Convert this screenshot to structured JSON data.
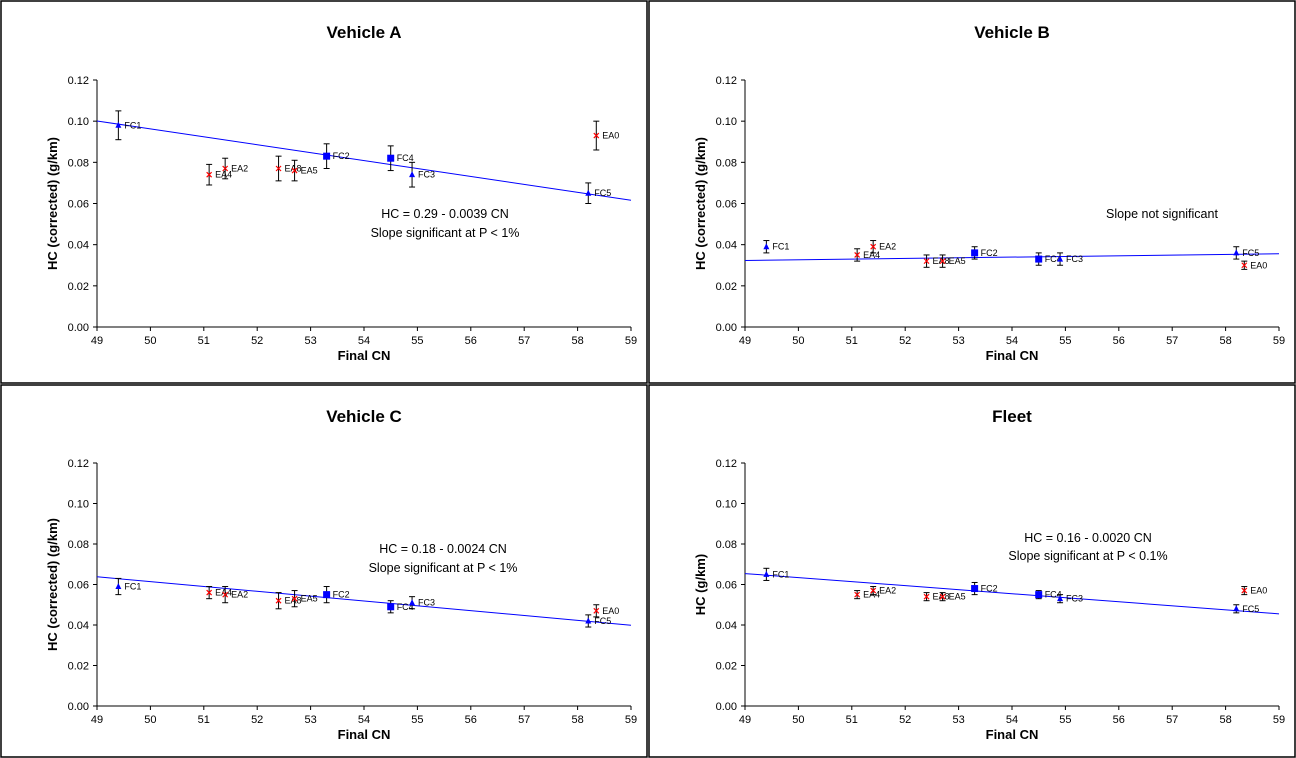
{
  "chart_data": [
    {
      "type": "scatter",
      "title": "Vehicle A",
      "xlabel": "Final CN",
      "ylabel": "HC (corrected) (g/km)",
      "xlim": [
        49,
        59
      ],
      "ylim": [
        0,
        0.12
      ],
      "x_ticks": [
        "49",
        "50",
        "51",
        "52",
        "53",
        "54",
        "55",
        "56",
        "57",
        "58",
        "59"
      ],
      "y_ticks": [
        "0.00",
        "0.02",
        "0.04",
        "0.06",
        "0.08",
        "0.10",
        "0.12"
      ],
      "annotations": [
        "HC = 0.29 - 0.0039 CN",
        "Slope significant at P < 1%"
      ],
      "fit": {
        "x": [
          49,
          59
        ],
        "y": [
          0.1001,
          0.0616
        ]
      },
      "points": [
        {
          "label": "FC1",
          "x": 49.4,
          "y": 0.098,
          "err": 0.007,
          "marker": "triangle"
        },
        {
          "label": "EA4",
          "x": 51.1,
          "y": 0.074,
          "err": 0.005,
          "marker": "x"
        },
        {
          "label": "EA2",
          "x": 51.4,
          "y": 0.077,
          "err": 0.005,
          "marker": "x"
        },
        {
          "label": "EA8",
          "x": 52.4,
          "y": 0.077,
          "err": 0.006,
          "marker": "x"
        },
        {
          "label": "EA5",
          "x": 52.7,
          "y": 0.076,
          "err": 0.005,
          "marker": "x"
        },
        {
          "label": "FC2",
          "x": 53.3,
          "y": 0.083,
          "err": 0.006,
          "marker": "square"
        },
        {
          "label": "FC4",
          "x": 54.5,
          "y": 0.082,
          "err": 0.006,
          "marker": "square"
        },
        {
          "label": "FC3",
          "x": 54.9,
          "y": 0.074,
          "err": 0.006,
          "marker": "triangle"
        },
        {
          "label": "FC5",
          "x": 58.2,
          "y": 0.065,
          "err": 0.005,
          "marker": "triangle"
        },
        {
          "label": "EA0",
          "x": 58.35,
          "y": 0.093,
          "err": 0.007,
          "marker": "x"
        }
      ]
    },
    {
      "type": "scatter",
      "title": "Vehicle B",
      "xlabel": "Final CN",
      "ylabel": "HC (corrected) (g/km)",
      "xlim": [
        49,
        59
      ],
      "ylim": [
        0,
        0.12
      ],
      "x_ticks": [
        "49",
        "50",
        "51",
        "52",
        "53",
        "54",
        "55",
        "56",
        "57",
        "58",
        "59"
      ],
      "y_ticks": [
        "0.00",
        "0.02",
        "0.04",
        "0.06",
        "0.08",
        "0.10",
        "0.12"
      ],
      "annotations": [
        "Slope not significant"
      ],
      "fit": {
        "x": [
          49,
          59
        ],
        "y": [
          0.0323,
          0.0356
        ]
      },
      "points": [
        {
          "label": "FC1",
          "x": 49.4,
          "y": 0.039,
          "err": 0.003,
          "marker": "triangle"
        },
        {
          "label": "EA4",
          "x": 51.1,
          "y": 0.035,
          "err": 0.003,
          "marker": "x"
        },
        {
          "label": "EA2",
          "x": 51.4,
          "y": 0.039,
          "err": 0.003,
          "marker": "x"
        },
        {
          "label": "EA8",
          "x": 52.4,
          "y": 0.032,
          "err": 0.003,
          "marker": "x"
        },
        {
          "label": "EA5",
          "x": 52.7,
          "y": 0.032,
          "err": 0.003,
          "marker": "x"
        },
        {
          "label": "FC2",
          "x": 53.3,
          "y": 0.036,
          "err": 0.003,
          "marker": "square"
        },
        {
          "label": "FC4",
          "x": 54.5,
          "y": 0.033,
          "err": 0.003,
          "marker": "square"
        },
        {
          "label": "FC3",
          "x": 54.9,
          "y": 0.033,
          "err": 0.003,
          "marker": "triangle"
        },
        {
          "label": "FC5",
          "x": 58.2,
          "y": 0.036,
          "err": 0.003,
          "marker": "triangle"
        },
        {
          "label": "EA0",
          "x": 58.35,
          "y": 0.03,
          "err": 0.002,
          "marker": "x"
        }
      ]
    },
    {
      "type": "scatter",
      "title": "Vehicle C",
      "xlabel": "Final CN",
      "ylabel": "HC (corrected) (g/km)",
      "xlim": [
        49,
        59
      ],
      "ylim": [
        0,
        0.12
      ],
      "x_ticks": [
        "49",
        "50",
        "51",
        "52",
        "53",
        "54",
        "55",
        "56",
        "57",
        "58",
        "59"
      ],
      "y_ticks": [
        "0.00",
        "0.02",
        "0.04",
        "0.06",
        "0.08",
        "0.10",
        "0.12"
      ],
      "annotations": [
        "HC = 0.18 - 0.0024 CN",
        "Slope significant at P < 1%"
      ],
      "fit": {
        "x": [
          49,
          59
        ],
        "y": [
          0.0638,
          0.0399
        ]
      },
      "points": [
        {
          "label": "FC1",
          "x": 49.4,
          "y": 0.059,
          "err": 0.004,
          "marker": "triangle"
        },
        {
          "label": "EA4",
          "x": 51.1,
          "y": 0.056,
          "err": 0.003,
          "marker": "x"
        },
        {
          "label": "EA2",
          "x": 51.4,
          "y": 0.055,
          "err": 0.004,
          "marker": "x"
        },
        {
          "label": "EA8",
          "x": 52.4,
          "y": 0.052,
          "err": 0.004,
          "marker": "x"
        },
        {
          "label": "EA5",
          "x": 52.7,
          "y": 0.053,
          "err": 0.004,
          "marker": "x"
        },
        {
          "label": "FC2",
          "x": 53.3,
          "y": 0.055,
          "err": 0.004,
          "marker": "square"
        },
        {
          "label": "FC4",
          "x": 54.5,
          "y": 0.049,
          "err": 0.003,
          "marker": "square"
        },
        {
          "label": "FC3",
          "x": 54.9,
          "y": 0.051,
          "err": 0.003,
          "marker": "triangle"
        },
        {
          "label": "FC5",
          "x": 58.2,
          "y": 0.042,
          "err": 0.003,
          "marker": "triangle"
        },
        {
          "label": "EA0",
          "x": 58.35,
          "y": 0.047,
          "err": 0.003,
          "marker": "x"
        }
      ]
    },
    {
      "type": "scatter",
      "title": "Fleet",
      "xlabel": "Final CN",
      "ylabel": "HC (g/km)",
      "xlim": [
        49,
        59
      ],
      "ylim": [
        0,
        0.12
      ],
      "x_ticks": [
        "49",
        "50",
        "51",
        "52",
        "53",
        "54",
        "55",
        "56",
        "57",
        "58",
        "59"
      ],
      "y_ticks": [
        "0.00",
        "0.02",
        "0.04",
        "0.06",
        "0.08",
        "0.10",
        "0.12"
      ],
      "annotations": [
        "HC = 0.16 - 0.0020 CN",
        "Slope significant at P < 0.1%"
      ],
      "fit": {
        "x": [
          49,
          59
        ],
        "y": [
          0.0654,
          0.0455
        ]
      },
      "points": [
        {
          "label": "FC1",
          "x": 49.4,
          "y": 0.065,
          "err": 0.003,
          "marker": "triangle"
        },
        {
          "label": "EA4",
          "x": 51.1,
          "y": 0.055,
          "err": 0.002,
          "marker": "x"
        },
        {
          "label": "EA2",
          "x": 51.4,
          "y": 0.057,
          "err": 0.002,
          "marker": "x"
        },
        {
          "label": "EA8",
          "x": 52.4,
          "y": 0.054,
          "err": 0.002,
          "marker": "x"
        },
        {
          "label": "EA5",
          "x": 52.7,
          "y": 0.054,
          "err": 0.002,
          "marker": "x"
        },
        {
          "label": "FC2",
          "x": 53.3,
          "y": 0.058,
          "err": 0.003,
          "marker": "square"
        },
        {
          "label": "FC4",
          "x": 54.5,
          "y": 0.055,
          "err": 0.002,
          "marker": "square"
        },
        {
          "label": "FC3",
          "x": 54.9,
          "y": 0.053,
          "err": 0.002,
          "marker": "triangle"
        },
        {
          "label": "FC5",
          "x": 58.2,
          "y": 0.048,
          "err": 0.002,
          "marker": "triangle"
        },
        {
          "label": "EA0",
          "x": 58.35,
          "y": 0.057,
          "err": 0.002,
          "marker": "x"
        }
      ]
    }
  ],
  "colors": {
    "fit_line": "#0000ff",
    "fc_marker": "#0000ff",
    "ea_marker": "#ff0000",
    "axis": "#000000",
    "background": "#ffffff"
  }
}
